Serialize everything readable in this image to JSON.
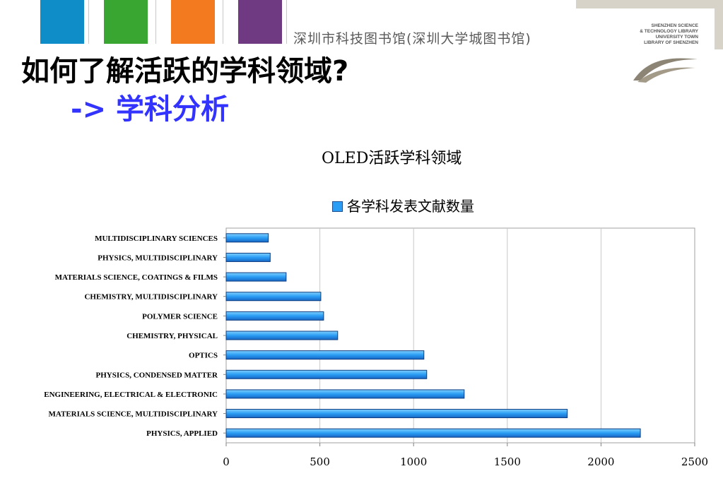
{
  "header": {
    "color_blocks": [
      "#0f8dc9",
      "#3aa632",
      "#f47a1f",
      "#6f3a82"
    ],
    "library_name": "深圳市科技图书馆(深圳大学城图书馆)",
    "logo_lines": [
      "SHENZHEN SCIENCE",
      "& TECHNOLOGY LIBRARY",
      "UNIVERSITY TOWN",
      "LIBRARY OF SHENZHEN"
    ],
    "logo_icon": "swoosh-logo-icon",
    "band_color": "#d8d3c8"
  },
  "slide": {
    "title": "如何了解活跃的学科领域?",
    "subtitle": "-> 学科分析",
    "subtitle_color": "#3333ff"
  },
  "chart_data": {
    "type": "bar",
    "orientation": "horizontal",
    "title": "OLED活跃学科领域",
    "categories": [
      "MULTIDISCIPLINARY SCIENCES",
      "PHYSICS, MULTIDISCIPLINARY",
      "MATERIALS SCIENCE, COATINGS & FILMS",
      "CHEMISTRY, MULTIDISCIPLINARY",
      "POLYMER SCIENCE",
      "CHEMISTRY, PHYSICAL",
      "OPTICS",
      "PHYSICS, CONDENSED MATTER",
      "ENGINEERING, ELECTRICAL & ELECTRONIC",
      "MATERIALS SCIENCE, MULTIDISCIPLINARY",
      "PHYSICS, APPLIED"
    ],
    "series": [
      {
        "name": "各学科发表文献数量",
        "values": [
          225,
          235,
          320,
          505,
          520,
          595,
          1055,
          1070,
          1270,
          1820,
          2210
        ],
        "color": "#2a9df4"
      }
    ],
    "xlim": [
      0,
      2500
    ],
    "xticks": [
      0,
      500,
      1000,
      1500,
      2000,
      2500
    ],
    "grid": "vertical",
    "legend_position": "top"
  }
}
